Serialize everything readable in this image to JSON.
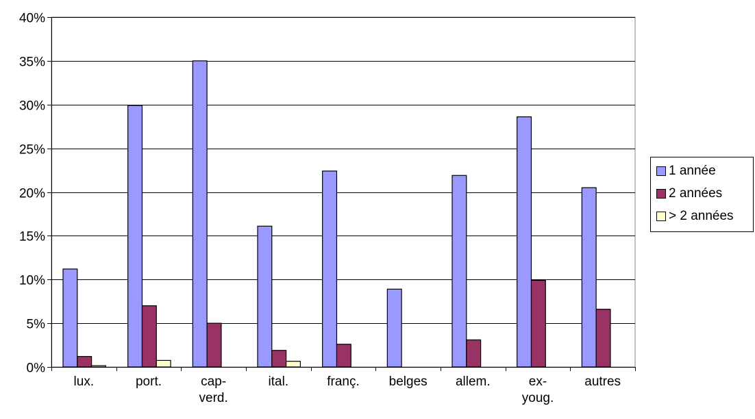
{
  "chart_data": {
    "type": "bar",
    "categories": [
      [
        "lux."
      ],
      [
        "port."
      ],
      [
        "cap-",
        "verd."
      ],
      [
        "ital."
      ],
      [
        "franç."
      ],
      [
        "belges"
      ],
      [
        "allem."
      ],
      [
        "ex-",
        "youg."
      ],
      [
        "autres"
      ]
    ],
    "series": [
      {
        "name": "1 année",
        "color": "#9999ff",
        "values": [
          11.2,
          29.9,
          35.0,
          16.1,
          22.4,
          8.9,
          21.9,
          28.6,
          20.5
        ]
      },
      {
        "name": "2 années",
        "color": "#993366",
        "values": [
          1.2,
          7.0,
          5.0,
          1.9,
          2.6,
          0.0,
          3.1,
          9.9,
          6.6
        ]
      },
      {
        "name": "> 2 années",
        "color": "#ffffcc",
        "values": [
          0.15,
          0.75,
          0.0,
          0.65,
          0.0,
          0.0,
          0.0,
          0.0,
          0.0
        ]
      }
    ],
    "ylim": [
      0,
      40
    ],
    "yticks": [
      "0%",
      "5%",
      "10%",
      "15%",
      "20%",
      "25%",
      "30%",
      "35%",
      "40%"
    ],
    "grid": true,
    "legend_position": "right"
  }
}
